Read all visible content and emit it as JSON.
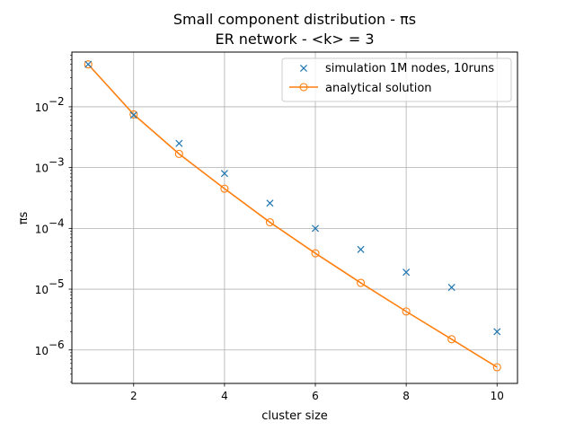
{
  "chart_data": {
    "type": "line",
    "title_line1": "Small component distribution - πs",
    "title_line2": "ER network - <k> = 3",
    "xlabel": "cluster size",
    "ylabel": "πs",
    "xlim": [
      0.64,
      10.45
    ],
    "ylim_log10": [
      -6.55,
      -1.1
    ],
    "yscale": "log",
    "grid": true,
    "legend_placement": "top-right",
    "x_ticks": [
      {
        "value": 2,
        "label": "2"
      },
      {
        "value": 4,
        "label": "4"
      },
      {
        "value": 6,
        "label": "6"
      },
      {
        "value": 8,
        "label": "8"
      },
      {
        "value": 10,
        "label": "10"
      }
    ],
    "y_ticks": [
      {
        "exp": -2,
        "base": "10",
        "power": "−2"
      },
      {
        "exp": -3,
        "base": "10",
        "power": "−3"
      },
      {
        "exp": -4,
        "base": "10",
        "power": "−4"
      },
      {
        "exp": -5,
        "base": "10",
        "power": "−5"
      },
      {
        "exp": -6,
        "base": "10",
        "power": "−6"
      }
    ],
    "series": [
      {
        "name": "simulation 1M nodes, 10runs",
        "style": "x-marker",
        "color": "#1f77b4",
        "x": [
          1,
          2,
          3,
          4,
          5,
          6,
          7,
          8,
          9,
          10
        ],
        "y": [
          0.05,
          0.0073,
          0.0025,
          0.0008,
          0.00026,
          0.0001,
          4.5e-05,
          1.9e-05,
          1.07e-05,
          2e-06
        ]
      },
      {
        "name": "analytical solution",
        "style": "line-circle",
        "color": "#ff7f0e",
        "x": [
          1,
          2,
          3,
          4,
          5,
          6,
          7,
          8,
          9,
          10
        ],
        "y": [
          0.0498,
          0.0075,
          0.00168,
          0.00045,
          0.000126,
          3.9e-05,
          1.27e-05,
          4.3e-06,
          1.5e-06,
          5.2e-07
        ]
      }
    ]
  }
}
